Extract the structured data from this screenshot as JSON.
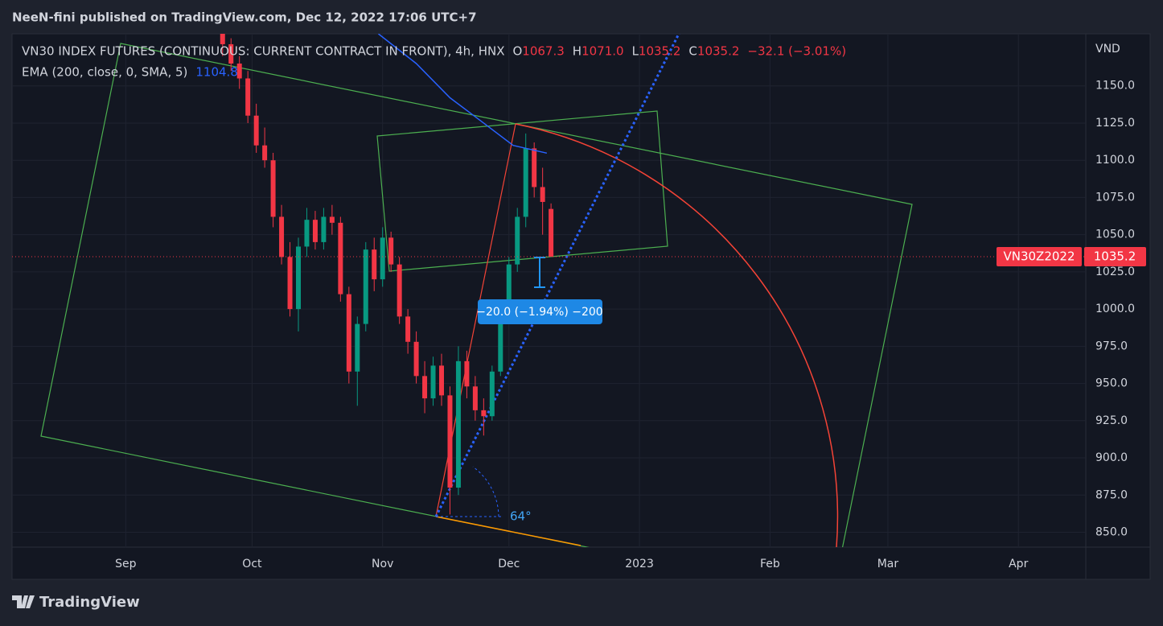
{
  "header": {
    "publisher": "NeeN-fini published on TradingView.com, Dec 12, 2022 17:06 UTC+7"
  },
  "chart_data": {
    "type": "candlestick",
    "title": "VN30 INDEX FUTURES (CONTINUOUS: CURRENT CONTRACT IN FRONT), 4h, HNX",
    "legend": [
      {
        "prefix": "O",
        "value": "1067.3"
      },
      {
        "prefix": "H",
        "value": "1071.0"
      },
      {
        "prefix": "L",
        "value": "1035.2"
      },
      {
        "prefix": "C",
        "value": "1035.2"
      }
    ],
    "change": "−32.1 (−3.01%)",
    "symbol": "VN30Z2022",
    "currency": "VND",
    "colors": {
      "up": "#089981",
      "down": "#f23645"
    },
    "x": [
      23,
      25,
      27,
      29,
      31,
      33,
      35,
      37,
      39,
      41,
      43,
      45,
      47,
      49,
      51,
      53,
      55,
      57,
      59,
      61,
      63,
      65,
      67,
      69,
      71,
      73,
      75,
      77,
      79,
      81,
      83,
      85,
      87,
      89,
      91,
      93,
      95,
      97,
      99,
      101
    ],
    "open": [
      1190,
      1178,
      1165,
      1155,
      1130,
      1110,
      1100,
      1062,
      1035,
      1000,
      1042,
      1060,
      1045,
      1062,
      1058,
      1010,
      958,
      990,
      1040,
      1020,
      1048,
      1030,
      995,
      978,
      955,
      940,
      962,
      942,
      880,
      965,
      948,
      932,
      928,
      958,
      1000,
      1030,
      1062,
      1108,
      1082,
      1067.3
    ],
    "high": [
      1195,
      1182,
      1170,
      1160,
      1138,
      1122,
      1105,
      1070,
      1045,
      1048,
      1068,
      1066,
      1068,
      1070,
      1062,
      1015,
      995,
      1045,
      1048,
      1055,
      1052,
      1035,
      1000,
      985,
      965,
      968,
      970,
      948,
      975,
      972,
      955,
      940,
      962,
      1005,
      1035,
      1068,
      1118,
      1112,
      1095,
      1071
    ],
    "low": [
      1170,
      1160,
      1148,
      1125,
      1105,
      1095,
      1055,
      1030,
      995,
      985,
      1035,
      1040,
      1040,
      1050,
      1005,
      950,
      935,
      985,
      1012,
      1015,
      1025,
      990,
      970,
      950,
      930,
      935,
      935,
      862,
      875,
      940,
      925,
      915,
      925,
      955,
      995,
      1025,
      1055,
      1075,
      1050,
      1035.2
    ],
    "close": [
      1178,
      1165,
      1155,
      1130,
      1110,
      1100,
      1062,
      1035,
      1000,
      1042,
      1060,
      1045,
      1062,
      1058,
      1010,
      958,
      990,
      1040,
      1020,
      1048,
      1030,
      995,
      978,
      955,
      940,
      962,
      942,
      880,
      965,
      948,
      932,
      928,
      958,
      1000,
      1030,
      1062,
      1108,
      1082,
      1072,
      1035.2
    ],
    "ema": {
      "name": "EMA (200, close, 0, SMA, 5)",
      "color": "#2962ff",
      "x": [
        60,
        69,
        77,
        85,
        92,
        100
      ],
      "values": [
        1185,
        1165,
        1142,
        1125,
        1110,
        1104.8
      ]
    },
    "xlim": [
      -27,
      228
    ],
    "xticks": [
      {
        "value": 0,
        "label": "Sep"
      },
      {
        "value": 30,
        "label": "Oct"
      },
      {
        "value": 61,
        "label": "Nov"
      },
      {
        "value": 91,
        "label": "Dec"
      },
      {
        "value": 122,
        "label": "2023"
      },
      {
        "value": 153,
        "label": "Feb"
      },
      {
        "value": 181,
        "label": "Mar"
      },
      {
        "value": 212,
        "label": "Apr"
      }
    ],
    "ylim": [
      840,
      1185
    ],
    "yticks": [
      {
        "value": 850,
        "label": "850.0"
      },
      {
        "value": 875,
        "label": "875.0"
      },
      {
        "value": 900,
        "label": "900.0"
      },
      {
        "value": 925,
        "label": "925.0"
      },
      {
        "value": 950,
        "label": "950.0"
      },
      {
        "value": 975,
        "label": "975.0"
      },
      {
        "value": 1000,
        "label": "1000.0"
      },
      {
        "value": 1025,
        "label": "1025.0"
      },
      {
        "value": 1050,
        "label": "1050.0"
      },
      {
        "value": 1075,
        "label": "1075.0"
      },
      {
        "value": 1100,
        "label": "1100.0"
      },
      {
        "value": 1125,
        "label": "1125.0"
      },
      {
        "value": 1150,
        "label": "1150.0"
      }
    ],
    "grid": true,
    "annotations": {
      "angle": "64°",
      "measure": "−20.0 (−1.94%) −200"
    }
  },
  "footer": {
    "brand": "TradingView"
  }
}
